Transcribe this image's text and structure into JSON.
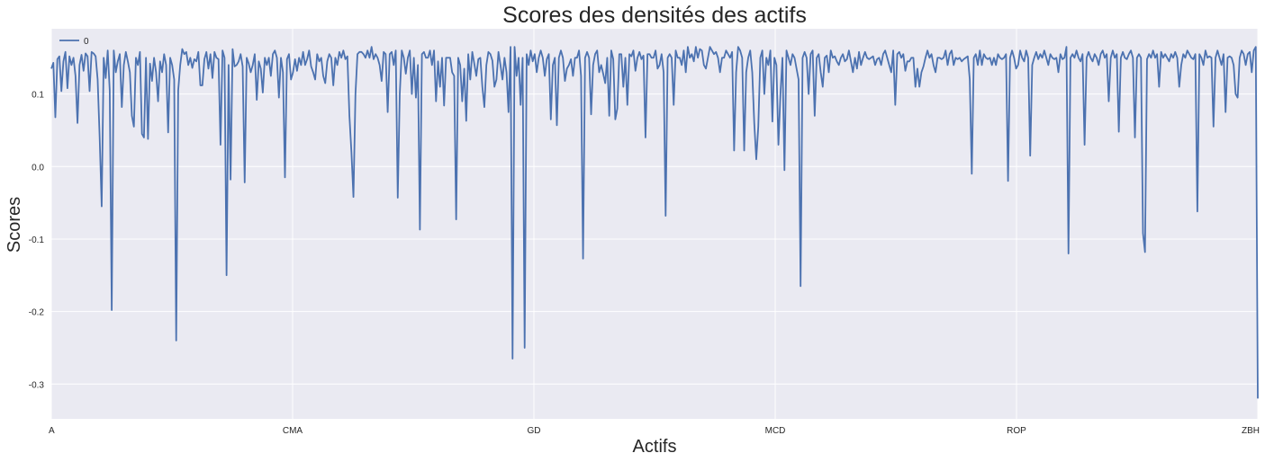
{
  "chart_data": {
    "type": "line",
    "title": "Scores des densités des actifs",
    "xlabel": "Actifs",
    "ylabel": "Scores",
    "xticks": [
      "A",
      "CMA",
      "GD",
      "MCD",
      "ROP",
      "ZBH"
    ],
    "yticks": [
      0.1,
      0.0,
      -0.1,
      -0.2,
      -0.3
    ],
    "ytick_labels": [
      "0.1",
      "0.0",
      "-0.1",
      "-0.2",
      "-0.3"
    ],
    "ylim": [
      -0.348,
      0.19
    ],
    "grid": true,
    "legend_position": "top-left",
    "colors": {
      "background": "#eaeaf2",
      "grid": "#ffffff",
      "line": "#4c72b0"
    },
    "series": [
      {
        "name": "0",
        "values": [
          0.135,
          0.143,
          0.068,
          0.148,
          0.152,
          0.104,
          0.145,
          0.158,
          0.108,
          0.152,
          0.14,
          0.15,
          0.125,
          0.06,
          0.14,
          0.154,
          0.132,
          0.156,
          0.152,
          0.104,
          0.158,
          0.156,
          0.152,
          0.12,
          0.04,
          -0.055,
          0.15,
          0.122,
          0.16,
          0.105,
          -0.198,
          0.16,
          0.13,
          0.145,
          0.155,
          0.082,
          0.14,
          0.158,
          0.145,
          0.13,
          0.07,
          0.055,
          0.15,
          0.14,
          0.158,
          0.045,
          0.04,
          0.15,
          0.038,
          0.142,
          0.118,
          0.15,
          0.13,
          0.09,
          0.145,
          0.13,
          0.155,
          0.14,
          0.047,
          0.15,
          0.14,
          0.12,
          -0.24,
          0.105,
          0.14,
          0.162,
          0.155,
          0.158,
          0.14,
          0.15,
          0.136,
          0.148,
          0.145,
          0.158,
          0.112,
          0.112,
          0.148,
          0.158,
          0.135,
          0.155,
          0.122,
          0.158,
          0.15,
          0.148,
          0.03,
          0.16,
          0.15,
          -0.15,
          0.14,
          -0.018,
          0.162,
          0.138,
          0.14,
          0.145,
          0.155,
          0.138,
          -0.022,
          0.15,
          0.142,
          0.13,
          0.14,
          0.155,
          0.092,
          0.145,
          0.135,
          0.102,
          0.15,
          0.14,
          0.15,
          0.125,
          0.155,
          0.16,
          0.15,
          0.095,
          0.15,
          0.13,
          -0.015,
          0.148,
          0.155,
          0.12,
          0.13,
          0.148,
          0.132,
          0.15,
          0.14,
          0.158,
          0.14,
          0.148,
          0.16,
          0.138,
          0.13,
          0.12,
          0.155,
          0.145,
          0.15,
          0.125,
          0.115,
          0.145,
          0.155,
          0.15,
          0.112,
          0.15,
          0.14,
          0.158,
          0.15,
          0.16,
          0.148,
          0.152,
          0.07,
          0.02,
          -0.042,
          0.1,
          0.155,
          0.158,
          0.158,
          0.155,
          0.15,
          0.16,
          0.15,
          0.165,
          0.148,
          0.155,
          0.15,
          0.14,
          0.118,
          0.158,
          0.155,
          0.075,
          0.155,
          0.158,
          0.14,
          0.16,
          -0.043,
          0.1,
          0.16,
          0.15,
          0.128,
          0.15,
          0.16,
          0.1,
          0.15,
          0.095,
          0.14,
          -0.087,
          0.155,
          0.158,
          0.15,
          0.15,
          0.16,
          0.14,
          0.16,
          0.09,
          0.145,
          0.11,
          0.15,
          0.084,
          0.15,
          0.15,
          0.15,
          0.13,
          0.125,
          -0.073,
          0.15,
          0.14,
          0.09,
          0.135,
          0.063,
          0.155,
          0.12,
          0.158,
          0.142,
          0.125,
          0.148,
          0.15,
          0.11,
          0.082,
          0.14,
          0.158,
          0.155,
          0.146,
          0.11,
          0.12,
          0.158,
          0.14,
          0.12,
          0.15,
          0.13,
          0.075,
          0.165,
          -0.265,
          0.165,
          0.125,
          0.15,
          0.085,
          0.15,
          -0.25,
          0.155,
          0.14,
          0.16,
          0.145,
          0.155,
          0.13,
          0.15,
          0.16,
          0.15,
          0.125,
          0.148,
          0.155,
          0.065,
          0.14,
          0.15,
          0.057,
          0.15,
          0.16,
          0.15,
          0.118,
          0.135,
          0.14,
          0.148,
          0.125,
          0.15,
          0.15,
          0.16,
          0.125,
          -0.127,
          0.15,
          0.158,
          0.15,
          0.072,
          0.14,
          0.155,
          0.16,
          0.13,
          0.14,
          0.128,
          0.115,
          0.15,
          0.07,
          0.16,
          0.148,
          0.065,
          0.08,
          0.155,
          0.155,
          0.11,
          0.15,
          0.085,
          0.155,
          0.152,
          0.16,
          0.132,
          0.15,
          0.158,
          0.148,
          0.153,
          0.04,
          0.155,
          0.155,
          0.15,
          0.15,
          0.16,
          0.135,
          0.14,
          0.155,
          0.13,
          -0.068,
          0.15,
          0.155,
          0.15,
          0.085,
          0.16,
          0.15,
          0.15,
          0.14,
          0.16,
          0.13,
          0.165,
          0.15,
          0.155,
          0.145,
          0.165,
          0.15,
          0.162,
          0.16,
          0.14,
          0.135,
          0.15,
          0.165,
          0.16,
          0.155,
          0.158,
          0.15,
          0.13,
          0.15,
          0.15,
          0.16,
          0.155,
          0.15,
          0.158,
          0.022,
          0.13,
          0.165,
          0.16,
          0.15,
          0.022,
          0.13,
          0.15,
          0.16,
          0.13,
          0.06,
          0.01,
          0.055,
          0.15,
          0.16,
          0.1,
          0.15,
          0.14,
          0.16,
          0.062,
          0.15,
          0.14,
          0.03,
          0.1,
          0.15,
          -0.005,
          0.16,
          0.15,
          0.14,
          0.155,
          0.15,
          0.135,
          0.12,
          -0.165,
          0.15,
          0.158,
          0.15,
          0.1,
          0.155,
          0.16,
          0.07,
          0.15,
          0.155,
          0.13,
          0.11,
          0.15,
          0.153,
          0.13,
          0.16,
          0.15,
          0.152,
          0.145,
          0.14,
          0.15,
          0.155,
          0.145,
          0.148,
          0.16,
          0.145,
          0.13,
          0.15,
          0.135,
          0.158,
          0.14,
          0.15,
          0.158,
          0.15,
          0.148,
          0.15,
          0.152,
          0.14,
          0.148,
          0.15,
          0.14,
          0.155,
          0.16,
          0.15,
          0.14,
          0.13,
          0.16,
          0.085,
          0.155,
          0.158,
          0.15,
          0.155,
          0.132,
          0.145,
          0.145,
          0.15,
          0.15,
          0.11,
          0.135,
          0.11,
          0.13,
          0.138,
          0.15,
          0.16,
          0.15,
          0.155,
          0.14,
          0.13,
          0.15,
          0.15,
          0.148,
          0.15,
          0.16,
          0.14,
          0.155,
          0.16,
          0.14,
          0.15,
          0.148,
          0.15,
          0.145,
          0.148,
          0.15,
          0.152,
          0.12,
          -0.01,
          0.15,
          0.155,
          0.14,
          0.16,
          0.14,
          0.155,
          0.15,
          0.148,
          0.15,
          0.14,
          0.15,
          0.14,
          0.155,
          0.15,
          0.148,
          0.15,
          0.155,
          -0.02,
          0.15,
          0.16,
          0.15,
          0.135,
          0.14,
          0.16,
          0.15,
          0.145,
          0.16,
          0.15,
          0.015,
          0.14,
          0.15,
          0.158,
          0.148,
          0.155,
          0.15,
          0.16,
          0.15,
          0.14,
          0.155,
          0.15,
          0.148,
          0.15,
          0.13,
          0.155,
          0.148,
          0.15,
          0.165,
          -0.12,
          0.15,
          0.155,
          0.15,
          0.16,
          0.15,
          0.145,
          0.155,
          0.03,
          0.15,
          0.158,
          0.15,
          0.145,
          0.155,
          0.15,
          0.14,
          0.155,
          0.16,
          0.15,
          0.155,
          0.09,
          0.15,
          0.16,
          0.15,
          0.155,
          0.048,
          0.15,
          0.158,
          0.15,
          0.148,
          0.155,
          0.16,
          0.15,
          0.04,
          0.15,
          0.155,
          0.15,
          -0.092,
          -0.118,
          0.148,
          0.155,
          0.15,
          0.16,
          0.15,
          0.155,
          0.11,
          0.158,
          0.15,
          0.155,
          0.15,
          0.145,
          0.155,
          0.15,
          0.158,
          0.15,
          0.11,
          0.14,
          0.155,
          0.15,
          0.16,
          0.155,
          0.15,
          0.148,
          0.155,
          -0.062,
          0.155,
          0.15,
          0.14,
          0.16,
          0.15,
          0.152,
          0.15,
          0.055,
          0.15,
          0.16,
          0.15,
          0.14,
          0.155,
          0.075,
          0.15,
          0.152,
          0.15,
          0.14,
          0.1,
          0.095,
          0.15,
          0.16,
          0.155,
          0.14,
          0.155,
          0.158,
          0.13,
          0.16,
          0.165,
          -0.32
        ]
      }
    ]
  }
}
